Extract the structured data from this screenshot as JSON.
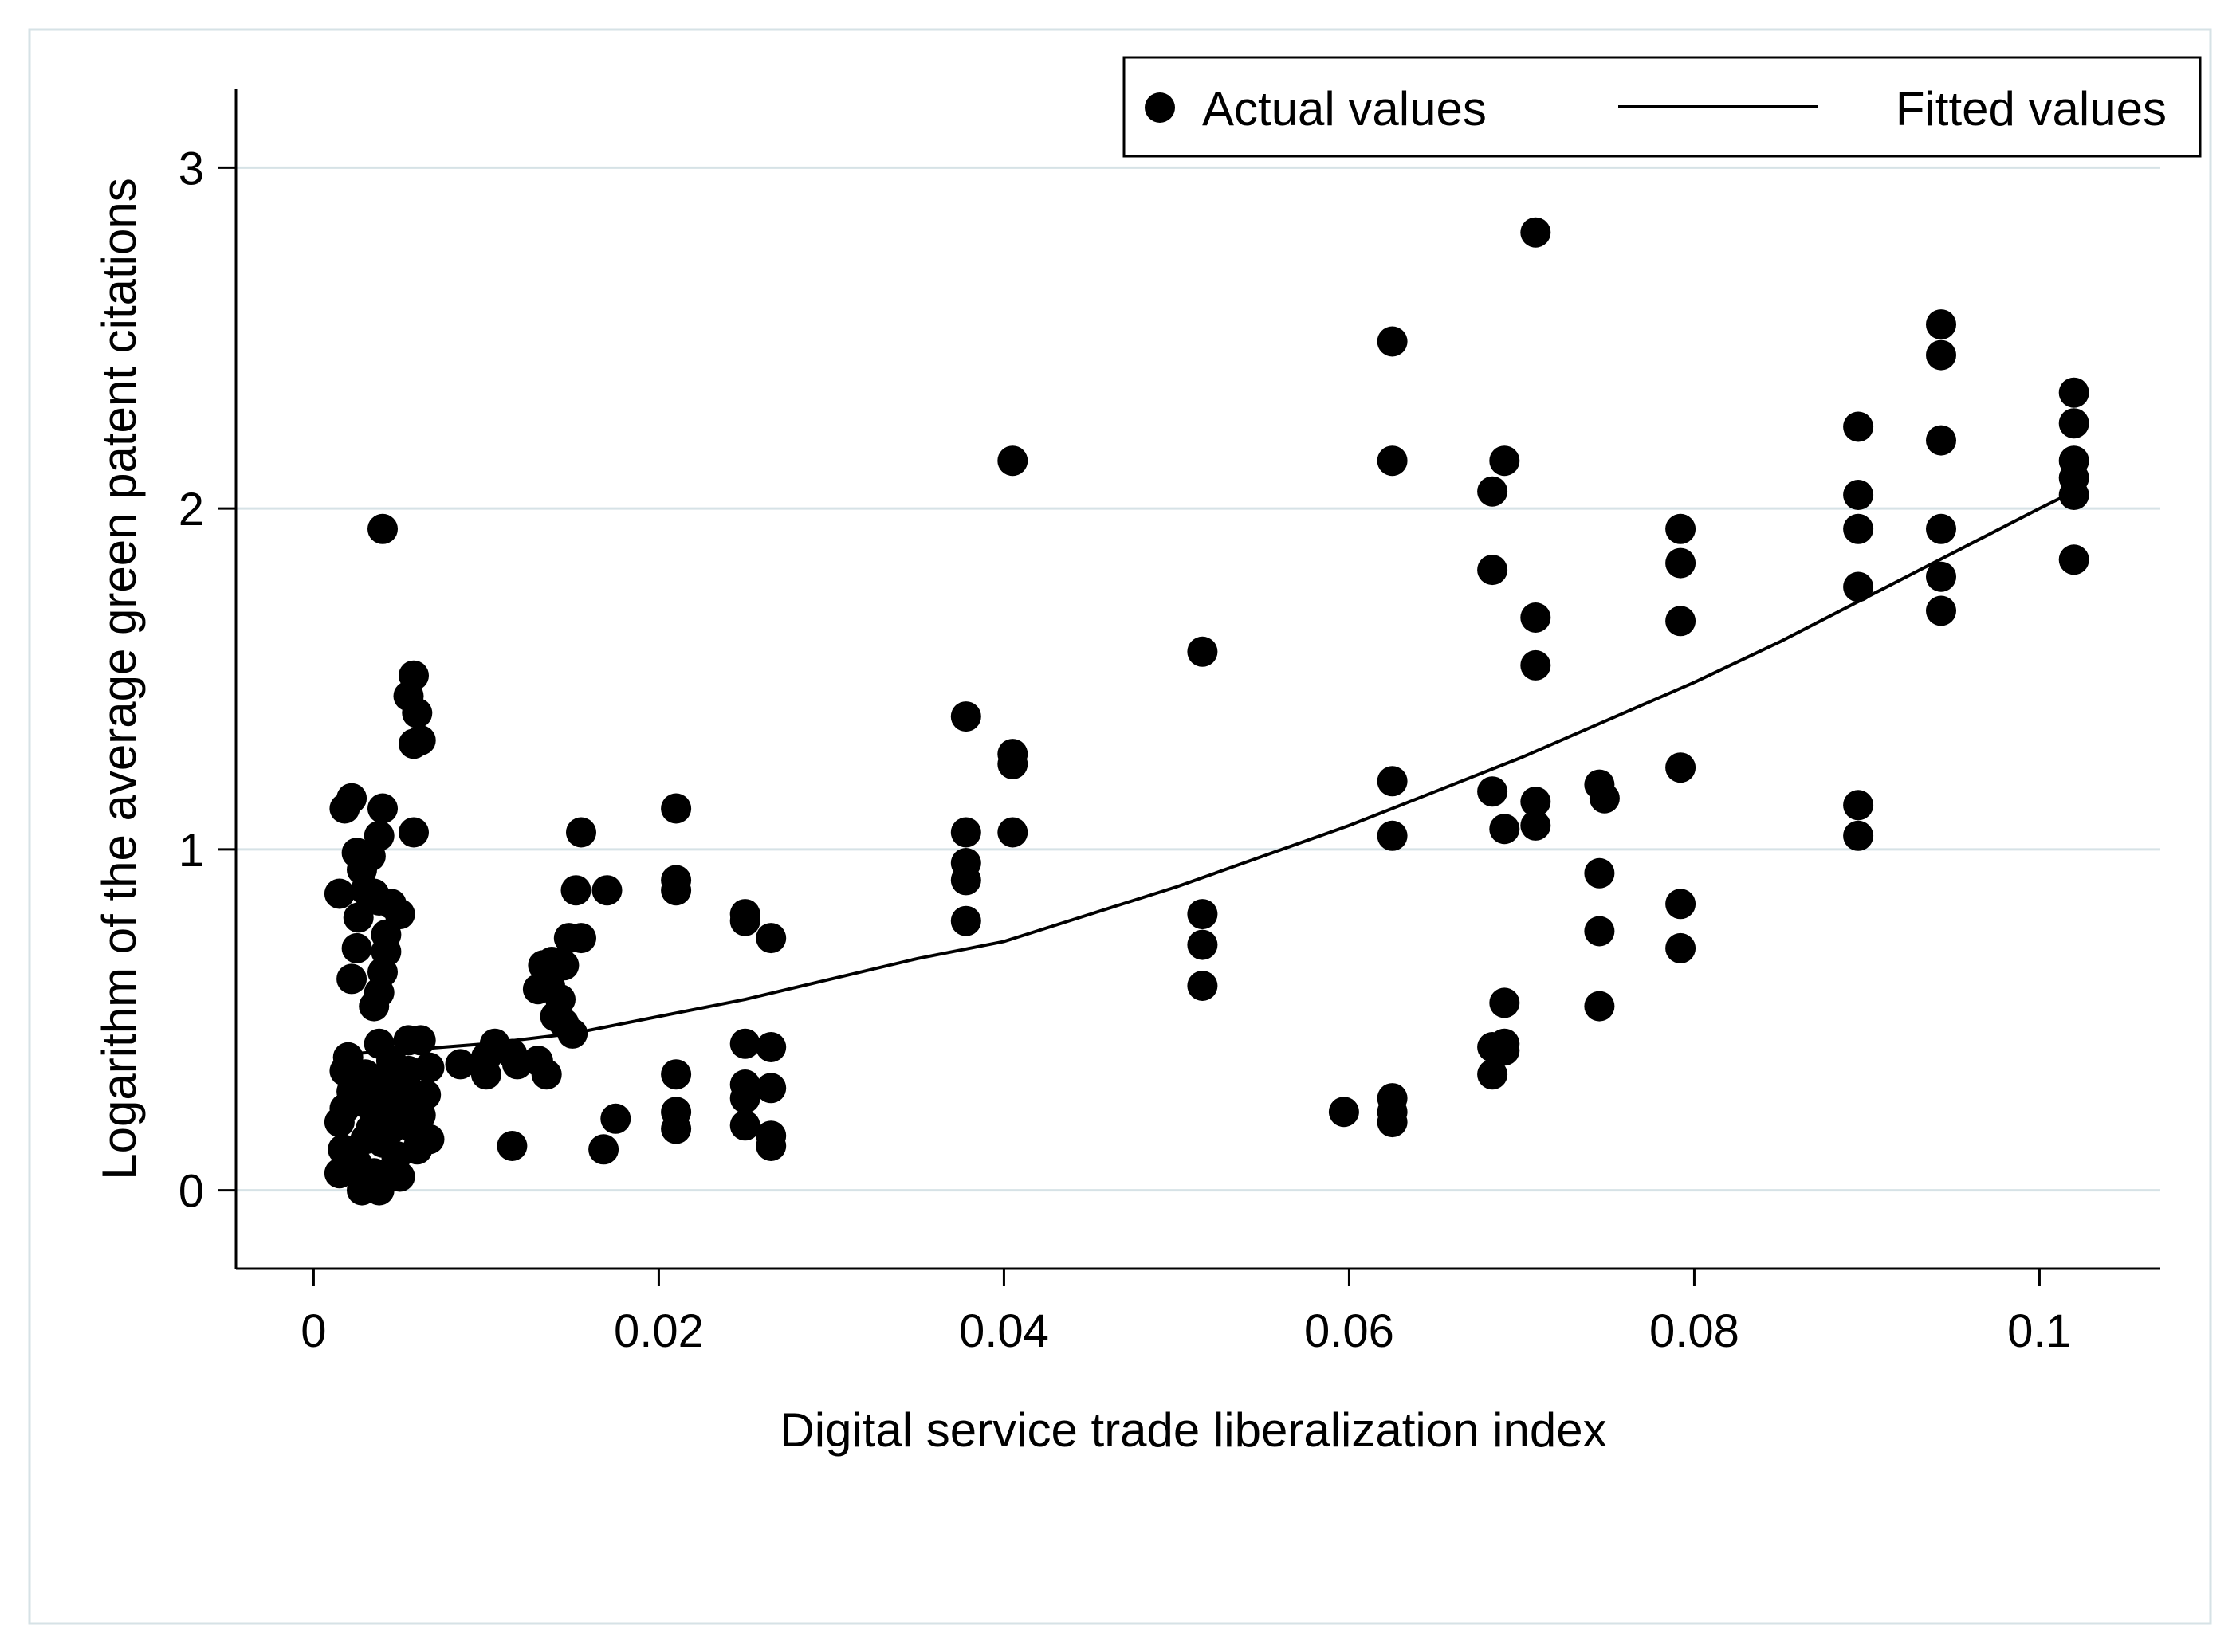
{
  "chart_data": {
    "type": "scatter",
    "title": "",
    "xlabel": "Digital service trade liberalization index",
    "ylabel": "Logarithm of the average green patent citations",
    "xlim": [
      -0.0045,
      0.107
    ],
    "ylim": [
      -0.23,
      3.23
    ],
    "xticks": [
      0,
      0.02,
      0.04,
      0.06,
      0.08,
      0.1
    ],
    "xtick_labels": [
      "0",
      "0.02",
      "0.04",
      "0.06",
      "0.08",
      "0.1"
    ],
    "yticks": [
      0,
      1,
      2,
      3
    ],
    "ytick_labels": [
      "0",
      "1",
      "2",
      "3"
    ],
    "grid": "horizontal",
    "legend": {
      "position": "top-right",
      "entries": [
        {
          "label": "Actual values",
          "marker": "dot"
        },
        {
          "label": "Fitted values",
          "marker": "line"
        }
      ]
    },
    "series": [
      {
        "name": "Actual values",
        "type": "scatter",
        "points": [
          [
            0.0015,
            0.87
          ],
          [
            0.0018,
            1.12
          ],
          [
            0.0022,
            1.15
          ],
          [
            0.0025,
            0.99
          ],
          [
            0.0028,
            0.94
          ],
          [
            0.0026,
            0.8
          ],
          [
            0.0025,
            0.71
          ],
          [
            0.0022,
            0.62
          ],
          [
            0.003,
            0.88
          ],
          [
            0.0033,
            0.98
          ],
          [
            0.0035,
            0.87
          ],
          [
            0.0038,
            0.85
          ],
          [
            0.004,
            1.12
          ],
          [
            0.0038,
            1.04
          ],
          [
            0.0042,
            0.75
          ],
          [
            0.0042,
            0.7
          ],
          [
            0.004,
            0.64
          ],
          [
            0.0038,
            0.58
          ],
          [
            0.0035,
            0.54
          ],
          [
            0.0045,
            0.84
          ],
          [
            0.005,
            0.81
          ],
          [
            0.004,
            1.94
          ],
          [
            0.0055,
            1.45
          ],
          [
            0.0058,
            1.51
          ],
          [
            0.006,
            1.4
          ],
          [
            0.0058,
            1.31
          ],
          [
            0.0062,
            1.32
          ],
          [
            0.0058,
            1.05
          ],
          [
            0.0018,
            0.35
          ],
          [
            0.002,
            0.39
          ],
          [
            0.0022,
            0.29
          ],
          [
            0.0018,
            0.24
          ],
          [
            0.0015,
            0.2
          ],
          [
            0.0017,
            0.12
          ],
          [
            0.0015,
            0.05
          ],
          [
            0.0025,
            0.08
          ],
          [
            0.0028,
            0.0
          ],
          [
            0.003,
            0.15
          ],
          [
            0.0032,
            0.25
          ],
          [
            0.003,
            0.34
          ],
          [
            0.0035,
            0.3
          ],
          [
            0.0035,
            0.05
          ],
          [
            0.0038,
            0.0
          ],
          [
            0.004,
            0.14
          ],
          [
            0.0042,
            0.22
          ],
          [
            0.004,
            0.32
          ],
          [
            0.0045,
            0.38
          ],
          [
            0.0045,
            0.28
          ],
          [
            0.0048,
            0.1
          ],
          [
            0.005,
            0.2
          ],
          [
            0.0052,
            0.3
          ],
          [
            0.005,
            0.04
          ],
          [
            0.0055,
            0.44
          ],
          [
            0.0055,
            0.35
          ],
          [
            0.0057,
            0.27
          ],
          [
            0.0058,
            0.18
          ],
          [
            0.006,
            0.12
          ],
          [
            0.0062,
            0.22
          ],
          [
            0.0065,
            0.28
          ],
          [
            0.0067,
            0.36
          ],
          [
            0.0067,
            0.15
          ],
          [
            0.0062,
            0.44
          ],
          [
            0.0038,
            0.43
          ],
          [
            0.0045,
            0.18
          ],
          [
            0.0033,
            0.18
          ],
          [
            0.0085,
            0.37
          ],
          [
            0.01,
            0.34
          ],
          [
            0.01,
            0.39
          ],
          [
            0.0105,
            0.43
          ],
          [
            0.0115,
            0.4
          ],
          [
            0.0118,
            0.37
          ],
          [
            0.0115,
            0.13
          ],
          [
            0.013,
            0.38
          ],
          [
            0.0135,
            0.34
          ],
          [
            0.013,
            0.59
          ],
          [
            0.0133,
            0.66
          ],
          [
            0.0138,
            0.67
          ],
          [
            0.0137,
            0.6
          ],
          [
            0.014,
            0.51
          ],
          [
            0.0143,
            0.56
          ],
          [
            0.0145,
            0.66
          ],
          [
            0.0145,
            0.49
          ],
          [
            0.015,
            0.46
          ],
          [
            0.0148,
            0.74
          ],
          [
            0.0152,
            0.88
          ],
          [
            0.0155,
            0.74
          ],
          [
            0.0155,
            1.05
          ],
          [
            0.017,
            0.88
          ],
          [
            0.0168,
            0.12
          ],
          [
            0.0175,
            0.21
          ],
          [
            0.021,
            1.12
          ],
          [
            0.021,
            0.91
          ],
          [
            0.021,
            0.88
          ],
          [
            0.021,
            0.34
          ],
          [
            0.021,
            0.23
          ],
          [
            0.021,
            0.18
          ],
          [
            0.025,
            0.81
          ],
          [
            0.025,
            0.79
          ],
          [
            0.025,
            0.43
          ],
          [
            0.025,
            0.31
          ],
          [
            0.025,
            0.27
          ],
          [
            0.025,
            0.19
          ],
          [
            0.0265,
            0.74
          ],
          [
            0.0265,
            0.42
          ],
          [
            0.0265,
            0.3
          ],
          [
            0.0265,
            0.16
          ],
          [
            0.0265,
            0.13
          ],
          [
            0.0378,
            1.39
          ],
          [
            0.0378,
            1.05
          ],
          [
            0.0378,
            0.96
          ],
          [
            0.0378,
            0.91
          ],
          [
            0.0378,
            0.79
          ],
          [
            0.0405,
            2.14
          ],
          [
            0.0405,
            1.28
          ],
          [
            0.0405,
            1.25
          ],
          [
            0.0405,
            1.05
          ],
          [
            0.0515,
            1.58
          ],
          [
            0.0515,
            0.81
          ],
          [
            0.0515,
            0.72
          ],
          [
            0.0515,
            0.6
          ],
          [
            0.0597,
            0.23
          ],
          [
            0.0625,
            2.49
          ],
          [
            0.0625,
            2.14
          ],
          [
            0.0625,
            1.2
          ],
          [
            0.0625,
            1.04
          ],
          [
            0.0625,
            0.27
          ],
          [
            0.0625,
            0.23
          ],
          [
            0.0625,
            0.2
          ],
          [
            0.0683,
            2.05
          ],
          [
            0.0683,
            1.82
          ],
          [
            0.0683,
            1.17
          ],
          [
            0.0683,
            0.42
          ],
          [
            0.0683,
            0.34
          ],
          [
            0.069,
            2.14
          ],
          [
            0.069,
            1.06
          ],
          [
            0.069,
            0.55
          ],
          [
            0.069,
            0.43
          ],
          [
            0.069,
            0.41
          ],
          [
            0.0708,
            2.81
          ],
          [
            0.0708,
            1.68
          ],
          [
            0.0708,
            1.54
          ],
          [
            0.0708,
            1.14
          ],
          [
            0.0708,
            1.07
          ],
          [
            0.0745,
            1.19
          ],
          [
            0.0748,
            1.15
          ],
          [
            0.0745,
            0.93
          ],
          [
            0.0745,
            0.76
          ],
          [
            0.0745,
            0.54
          ],
          [
            0.0792,
            1.94
          ],
          [
            0.0792,
            1.84
          ],
          [
            0.0792,
            1.67
          ],
          [
            0.0792,
            1.24
          ],
          [
            0.0792,
            0.84
          ],
          [
            0.0792,
            0.71
          ],
          [
            0.0895,
            2.24
          ],
          [
            0.0895,
            2.04
          ],
          [
            0.0895,
            1.94
          ],
          [
            0.0895,
            1.77
          ],
          [
            0.0895,
            1.13
          ],
          [
            0.0895,
            1.04
          ],
          [
            0.0943,
            2.54
          ],
          [
            0.0943,
            2.45
          ],
          [
            0.0943,
            2.2
          ],
          [
            0.0943,
            1.94
          ],
          [
            0.0943,
            1.8
          ],
          [
            0.0943,
            1.7
          ],
          [
            0.102,
            2.34
          ],
          [
            0.102,
            2.25
          ],
          [
            0.102,
            2.14
          ],
          [
            0.102,
            2.09
          ],
          [
            0.102,
            2.04
          ],
          [
            0.102,
            1.85
          ]
        ]
      },
      {
        "name": "Fitted values",
        "type": "line",
        "points": [
          [
            0.002,
            0.4
          ],
          [
            0.005,
            0.41
          ],
          [
            0.01,
            0.43
          ],
          [
            0.015,
            0.46
          ],
          [
            0.02,
            0.51
          ],
          [
            0.025,
            0.56
          ],
          [
            0.03,
            0.62
          ],
          [
            0.035,
            0.68
          ],
          [
            0.04,
            0.73
          ],
          [
            0.045,
            0.81
          ],
          [
            0.05,
            0.89
          ],
          [
            0.055,
            0.98
          ],
          [
            0.06,
            1.07
          ],
          [
            0.065,
            1.17
          ],
          [
            0.07,
            1.27
          ],
          [
            0.075,
            1.38
          ],
          [
            0.08,
            1.49
          ],
          [
            0.085,
            1.61
          ],
          [
            0.09,
            1.74
          ],
          [
            0.095,
            1.87
          ],
          [
            0.1,
            2.0
          ],
          [
            0.102,
            2.05
          ]
        ]
      }
    ]
  }
}
